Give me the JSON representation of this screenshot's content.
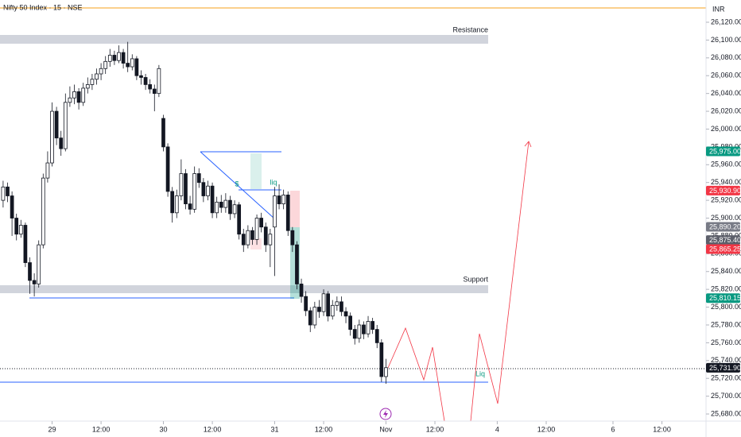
{
  "chart_data": {
    "type": "candlestick",
    "title": "Nifty 50 Index · 15 · NSE",
    "currency": "INR",
    "up_color": "#ffffff",
    "down_color": "#131722",
    "candles": {
      "open": [
        25920,
        25935,
        25925,
        25900,
        25882,
        25892,
        25850,
        25830,
        25826,
        25870,
        25945,
        25962,
        26020,
        25990,
        25978,
        26030,
        26035,
        26042,
        26030,
        26046,
        26050,
        26056,
        26062,
        26068,
        26076,
        26083,
        26077,
        26086,
        26074,
        26070,
        26079,
        26060,
        26058,
        26050,
        26045,
        26040,
        26012,
        25980,
        25930,
        25906,
        25925,
        25950,
        25916,
        25910,
        25950,
        25940,
        25925,
        25936,
        25906,
        25918,
        25912,
        25920,
        25905,
        25915,
        25882,
        25870,
        25886,
        25876,
        25900,
        25890,
        25870,
        25890,
        25925,
        25916,
        25926,
        25886,
        25870,
        25826,
        25812,
        25796,
        25780,
        25800,
        25795,
        25815,
        25790,
        25802,
        25806,
        25795,
        25790,
        25775,
        25765,
        25780,
        25770,
        25784,
        25775,
        25760,
        25722
      ],
      "high": [
        25942,
        25940,
        25930,
        25905,
        25898,
        25895,
        25856,
        25838,
        25875,
        25950,
        25975,
        26030,
        26025,
        25998,
        26040,
        26048,
        26050,
        26046,
        26052,
        26058,
        26062,
        26068,
        26074,
        26082,
        26090,
        26088,
        26094,
        26090,
        26098,
        26084,
        26082,
        26066,
        26062,
        26056,
        26050,
        26072,
        26016,
        25984,
        25935,
        25932,
        25966,
        25955,
        25925,
        25958,
        25956,
        25945,
        25942,
        25940,
        25924,
        25926,
        25928,
        25925,
        25920,
        25918,
        25888,
        25892,
        25890,
        25904,
        25906,
        25895,
        25888,
        25935,
        25938,
        25932,
        25930,
        25890,
        25874,
        25832,
        25818,
        25800,
        25806,
        25808,
        25820,
        25818,
        25808,
        25812,
        25812,
        25800,
        25794,
        25780,
        25786,
        25784,
        25790,
        25788,
        25780,
        25764,
        25742
      ],
      "low": [
        25912,
        25918,
        25880,
        25875,
        25878,
        25845,
        25815,
        25812,
        25822,
        25866,
        25940,
        25958,
        25982,
        25970,
        25975,
        26025,
        26028,
        26022,
        26026,
        26040,
        26044,
        26050,
        26055,
        26062,
        26070,
        26072,
        26074,
        26068,
        26064,
        26066,
        26055,
        26050,
        26044,
        26040,
        26020,
        26036,
        25975,
        25924,
        25895,
        25900,
        25920,
        25910,
        25904,
        25906,
        25934,
        25918,
        25920,
        25900,
        25900,
        25906,
        25906,
        25898,
        25900,
        25876,
        25862,
        25866,
        25870,
        25870,
        25884,
        25862,
        25845,
        25835,
        25910,
        25910,
        25880,
        25862,
        25820,
        25805,
        25790,
        25772,
        25776,
        25788,
        25790,
        25784,
        25786,
        25796,
        25790,
        25782,
        25768,
        25758,
        25760,
        25764,
        25766,
        25770,
        25754,
        25716,
        25714
      ],
      "close": [
        25935,
        25925,
        25900,
        25882,
        25892,
        25850,
        25830,
        25826,
        25870,
        25945,
        25962,
        26020,
        25990,
        25978,
        26030,
        26035,
        26042,
        26030,
        26046,
        26050,
        26056,
        26062,
        26068,
        26076,
        26083,
        26077,
        26086,
        26074,
        26070,
        26079,
        26060,
        26058,
        26050,
        26045,
        26040,
        26068,
        25980,
        25930,
        25906,
        25925,
        25950,
        25916,
        25910,
        25950,
        25940,
        25925,
        25936,
        25906,
        25918,
        25912,
        25920,
        25905,
        25915,
        25882,
        25870,
        25886,
        25876,
        25900,
        25890,
        25870,
        25882,
        25925,
        25916,
        25926,
        25886,
        25870,
        25826,
        25812,
        25796,
        25780,
        25800,
        25795,
        25815,
        25790,
        25802,
        25806,
        25795,
        25790,
        25775,
        25765,
        25780,
        25770,
        25784,
        25775,
        25760,
        25722,
        25732
      ]
    },
    "xlim": [
      -0.7,
      157.9
    ],
    "xticks": [
      {
        "value": 11,
        "label": "29"
      },
      {
        "value": 22,
        "label": "12:00"
      },
      {
        "value": 36,
        "label": "30"
      },
      {
        "value": 47,
        "label": "12:00"
      },
      {
        "value": 61,
        "label": "31"
      },
      {
        "value": 72,
        "label": "12:00"
      },
      {
        "value": 86,
        "label": "Nov"
      },
      {
        "value": 97,
        "label": "12:00"
      },
      {
        "value": 111,
        "label": "4"
      },
      {
        "value": 122,
        "label": "12:00"
      },
      {
        "value": 137,
        "label": "6"
      },
      {
        "value": 148,
        "label": "12:00"
      }
    ],
    "ylim": [
      25672,
      26145
    ],
    "yticks": [
      {
        "value": 26120,
        "label": "26,120.00"
      },
      {
        "value": 26100,
        "label": "26,100.00"
      },
      {
        "value": 26080,
        "label": "26,080.00"
      },
      {
        "value": 26060,
        "label": "26,060.00"
      },
      {
        "value": 26040,
        "label": "26,040.00"
      },
      {
        "value": 26020,
        "label": "26,020.00"
      },
      {
        "value": 26000,
        "label": "26,000.00"
      },
      {
        "value": 25980,
        "label": "25,980.00"
      },
      {
        "value": 25960,
        "label": "25,960.00"
      },
      {
        "value": 25940,
        "label": "25,940.00"
      },
      {
        "value": 25920,
        "label": "25,920.00"
      },
      {
        "value": 25900,
        "label": "25,900.00"
      },
      {
        "value": 25880,
        "label": "25,880.00"
      },
      {
        "value": 25860,
        "label": "25,860.00"
      },
      {
        "value": 25840,
        "label": "25,840.00"
      },
      {
        "value": 25820,
        "label": "25,820.00"
      },
      {
        "value": 25800,
        "label": "25,800.00"
      },
      {
        "value": 25780,
        "label": "25,780.00"
      },
      {
        "value": 25760,
        "label": "25,760.00"
      },
      {
        "value": 25740,
        "label": "25,740.00"
      },
      {
        "value": 25720,
        "label": "25,720.00"
      },
      {
        "value": 25700,
        "label": "25,700.00"
      },
      {
        "value": 25680,
        "label": "25,680.00"
      }
    ],
    "price_labels": [
      {
        "value": 25975.0,
        "label": "25,975.00",
        "color": "#089981"
      },
      {
        "value": 25930.9,
        "label": "25,930.90",
        "color": "#f23645"
      },
      {
        "value": 25890.2,
        "label": "25,890.20",
        "color": "#787b86"
      },
      {
        "value": 25875.4,
        "label": "25,875.40",
        "color": "#5d606b"
      },
      {
        "value": 25865.25,
        "label": "25,865.25",
        "color": "#f23645"
      },
      {
        "value": 25810.15,
        "label": "25,810.15",
        "color": "#089981"
      },
      {
        "value": 25731.9,
        "label": "25,731.90",
        "color": "#131722"
      }
    ],
    "annotations": {
      "resistance": "Resistance",
      "support": "Support",
      "liq_upper": "liq",
      "liq_lower": "Liq",
      "dollar": "$"
    }
  }
}
